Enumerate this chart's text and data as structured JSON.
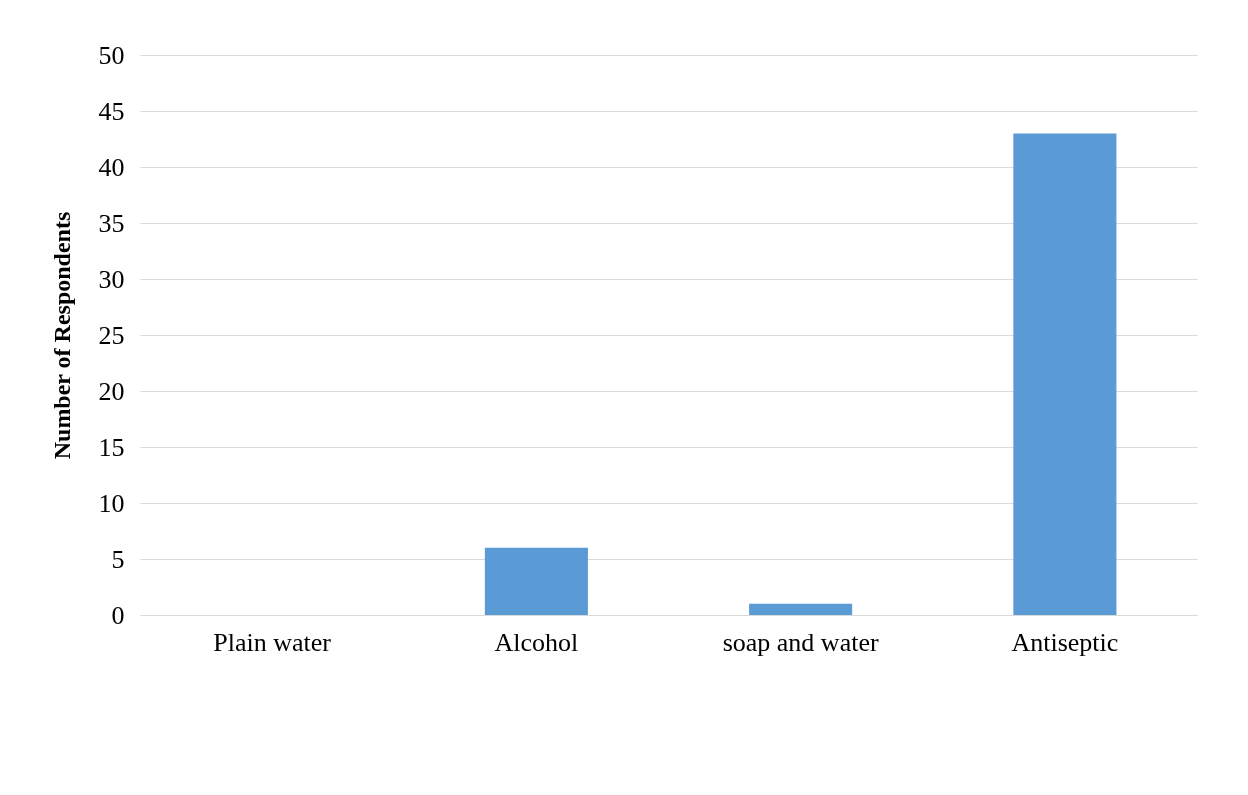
{
  "chart_data": {
    "type": "bar",
    "ylabel": "Number of Respondents",
    "categories": [
      "Plain water",
      "Alcohol",
      "soap and water",
      "Antiseptic"
    ],
    "values": [
      0,
      6,
      1,
      43
    ],
    "color": "#5b9bd5",
    "ylim": [
      0,
      50
    ],
    "yticks": [
      0,
      5,
      10,
      15,
      20,
      25,
      30,
      35,
      40,
      45,
      50
    ],
    "grid": "y"
  }
}
